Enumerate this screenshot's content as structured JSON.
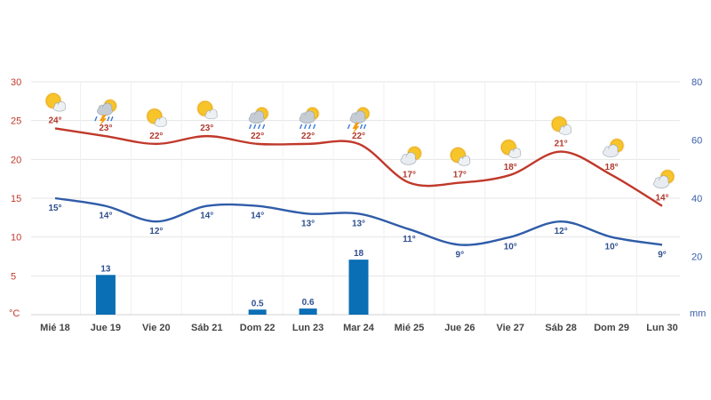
{
  "chart_data": {
    "type": "line",
    "categories": [
      "Mié 18",
      "Jue 19",
      "Vie 20",
      "Sáb 21",
      "Dom 22",
      "Lun 23",
      "Mar 24",
      "Mié 25",
      "Jue 26",
      "Vie 27",
      "Sáb 28",
      "Dom 29",
      "Lun 30"
    ],
    "left_axis": {
      "unit": "°C",
      "ticks": [
        30,
        25,
        20,
        15,
        10,
        5
      ],
      "ylim": [
        0,
        30
      ]
    },
    "right_axis": {
      "unit": "mm",
      "ticks": [
        80,
        60,
        40,
        20
      ],
      "ylim": [
        0,
        80
      ]
    },
    "series": [
      {
        "values": [
          24,
          23,
          22,
          23,
          22,
          22,
          22,
          17,
          17,
          18,
          21,
          18,
          14
        ],
        "labels": [
          "24°",
          "23°",
          "22°",
          "23°",
          "22°",
          "22°",
          "22°",
          "17°",
          "17°",
          "18°",
          "21°",
          "18°",
          "14°"
        ],
        "color": "#c0392b"
      },
      {
        "values": [
          15,
          14,
          12,
          14,
          14,
          13,
          13,
          11,
          9,
          10,
          12,
          10,
          9
        ],
        "labels": [
          "15°",
          "14°",
          "12°",
          "14°",
          "14°",
          "13°",
          "13°",
          "11°",
          "9°",
          "10°",
          "12°",
          "10°",
          "9°"
        ],
        "color": "#2f5ca8"
      }
    ],
    "precipitation": {
      "values": [
        0,
        13,
        0,
        0,
        0.5,
        0.6,
        18,
        0,
        0,
        0,
        0,
        0,
        0
      ],
      "labels": [
        "",
        "13",
        "",
        "",
        "0.5",
        "0.6",
        "18",
        "",
        "",
        "",
        "",
        "",
        ""
      ],
      "color": "#0a6fb5"
    },
    "icons": [
      "sun-cloud",
      "storm",
      "sun-cloud",
      "sun-cloud",
      "rain",
      "rain",
      "storm",
      "cloud-sun",
      "sun-cloud",
      "sun-cloud",
      "sun-cloud",
      "cloud-sun",
      "cloud-sun"
    ],
    "grid": true,
    "colors": {
      "max": "#c0392b",
      "min": "#2f5ca8",
      "rain": "#0a6fb5"
    }
  }
}
